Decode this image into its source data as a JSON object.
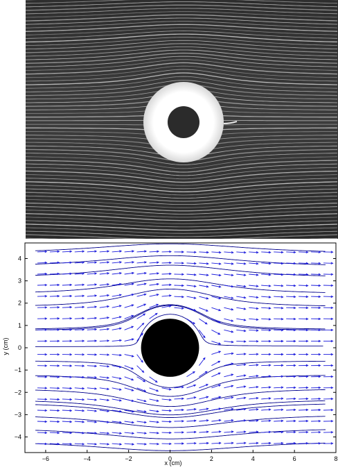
{
  "photo": {
    "description_icon": "flow-visualization-photo"
  },
  "chart_data": {
    "type": "vector-field",
    "xlabel": "x (cm)",
    "ylabel": "y (cm)",
    "xlim": [
      -7,
      8
    ],
    "ylim": [
      -4.7,
      4.7
    ],
    "xticks": [
      -6,
      -4,
      -2,
      0,
      2,
      4,
      6,
      8
    ],
    "yticks": [
      -4,
      -3,
      -2,
      -1,
      0,
      1,
      2,
      3,
      4
    ],
    "xtick_labels": [
      "−6",
      "−4",
      "−2",
      "0",
      "2",
      "4",
      "6",
      "8"
    ],
    "ytick_labels": [
      "−4",
      "−3",
      "−2",
      "−1",
      "0",
      "1",
      "2",
      "3",
      "4"
    ],
    "obstacle": {
      "cx": 0,
      "cy": 0,
      "r": 1.4
    },
    "vector_rows_y": [
      4.3,
      3.8,
      3.3,
      2.8,
      2.3,
      1.8,
      1.3,
      0.8,
      0.3,
      -0.3,
      -0.8,
      -1.3,
      -1.8,
      -2.3,
      -2.8,
      -3.3,
      -3.8,
      -4.3
    ],
    "vector_cols_x": [
      -6.4,
      -5.8,
      -5.2,
      -4.6,
      -4.0,
      -3.4,
      -2.8,
      -2.2,
      -1.6,
      -1.0,
      -0.4,
      0.2,
      0.8,
      1.4,
      2.0,
      2.6,
      3.2,
      3.8,
      4.4,
      5.0,
      5.6,
      6.2,
      6.8,
      7.4
    ],
    "streamline_start_y": [
      4.35,
      3.75,
      3.25,
      2.5,
      1.9,
      0.85,
      0.8,
      0.05,
      -0.6,
      -1.25,
      -1.9,
      -2.4,
      -2.55,
      -3.1,
      -3.7,
      -4.3
    ],
    "vector_color": "#1a1adc",
    "streamline_color": "#00008b",
    "obstacle_color": "#000000"
  }
}
